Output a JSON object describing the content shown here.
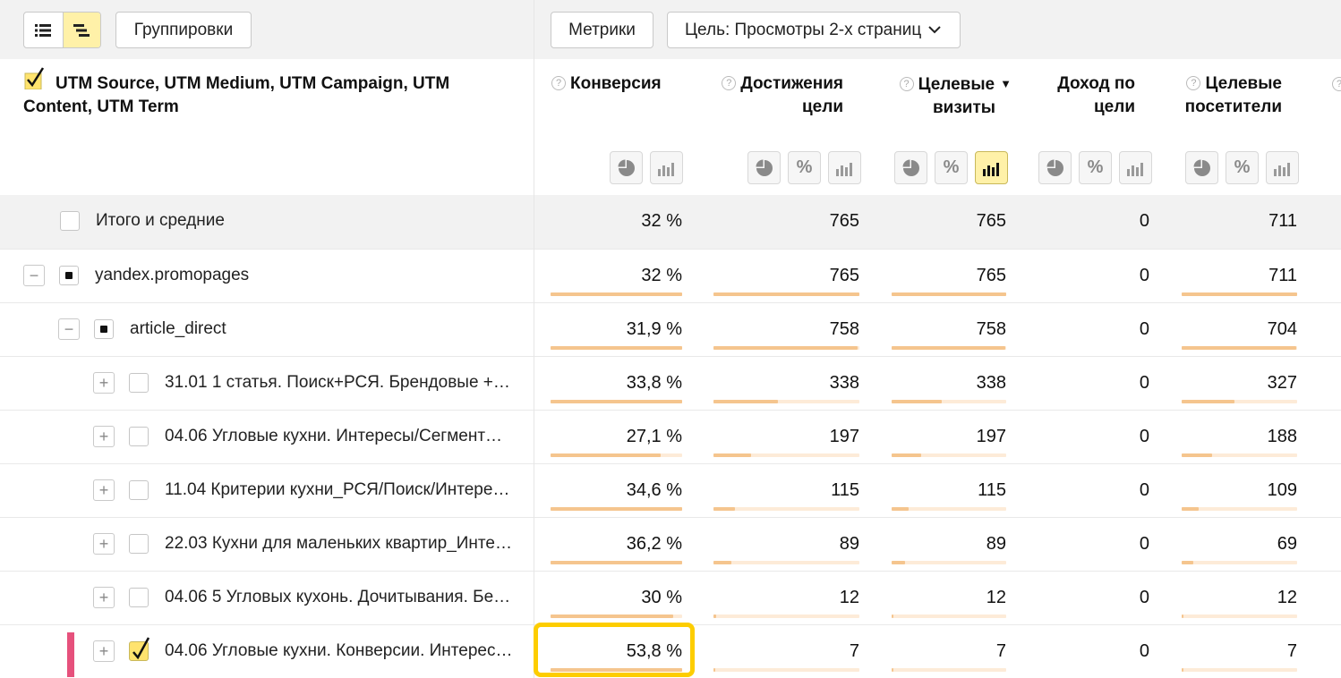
{
  "toolbar": {
    "groupings_label": "Группировки",
    "metrics_label": "Метрики",
    "goal_label": "Цель: Просмотры 2-х страниц"
  },
  "header": {
    "dimensions_title": "UTM Source, UTM Medium, UTM Campaign, UTM Content, UTM Term",
    "columns": [
      {
        "line1": "Конверсия",
        "line2": "",
        "sorted": false
      },
      {
        "line1": "Достижения",
        "line2": "цели",
        "sorted": false
      },
      {
        "line1": "Целевые",
        "line2": "визиты",
        "sorted": true
      },
      {
        "line1": "Доход по",
        "line2": "цели",
        "sorted": false
      },
      {
        "line1": "Целевые",
        "line2": "посетители",
        "sorted": false
      }
    ],
    "sort_arrow": "▼"
  },
  "rows": [
    {
      "label": "Итого и средние",
      "level": 0,
      "type": "total",
      "values": [
        "32 %",
        "765",
        "765",
        "0",
        "711"
      ],
      "bars": [
        null,
        null,
        null,
        null,
        null
      ]
    },
    {
      "label": "yandex.promopages",
      "level": 0,
      "type": "expanded",
      "values": [
        "32 %",
        "765",
        "765",
        "0",
        "711"
      ],
      "bars": [
        1,
        1,
        1,
        null,
        1
      ]
    },
    {
      "label": "article_direct",
      "level": 1,
      "type": "expanded",
      "values": [
        "31,9 %",
        "758",
        "758",
        "0",
        "704"
      ],
      "bars": [
        1,
        0.99,
        0.99,
        null,
        0.99
      ]
    },
    {
      "label": "31.01 1 статья. Поиск+РСЯ. Брендовые +…",
      "level": 2,
      "type": "collapsed",
      "values": [
        "33,8 %",
        "338",
        "338",
        "0",
        "327"
      ],
      "bars": [
        1,
        0.44,
        0.44,
        null,
        0.46
      ]
    },
    {
      "label": "04.06 Угловые кухни. Интересы/Сегмент…",
      "level": 2,
      "type": "collapsed",
      "values": [
        "27,1 %",
        "197",
        "197",
        "0",
        "188"
      ],
      "bars": [
        0.84,
        0.26,
        0.26,
        null,
        0.26
      ]
    },
    {
      "label": "11.04 Критерии кухни_РСЯ/Поиск/Интере…",
      "level": 2,
      "type": "collapsed",
      "values": [
        "34,6 %",
        "115",
        "115",
        "0",
        "109"
      ],
      "bars": [
        1,
        0.15,
        0.15,
        null,
        0.15
      ]
    },
    {
      "label": "22.03 Кухни для маленьких квартир_Инте…",
      "level": 2,
      "type": "collapsed",
      "values": [
        "36,2 %",
        "89",
        "89",
        "0",
        "69"
      ],
      "bars": [
        1,
        0.12,
        0.12,
        null,
        0.1
      ]
    },
    {
      "label": "04.06 5 Угловых кухонь. Дочитывания. Бе…",
      "level": 2,
      "type": "collapsed",
      "values": [
        "30 %",
        "12",
        "12",
        "0",
        "12"
      ],
      "bars": [
        0.93,
        0.016,
        0.016,
        null,
        0.017
      ]
    },
    {
      "label": "04.06 Угловые кухни. Конверсии. Интерес…",
      "level": 2,
      "type": "collapsed",
      "checked": true,
      "values": [
        "53,8 %",
        "7",
        "7",
        "0",
        "7"
      ],
      "bars": [
        1,
        0.009,
        0.009,
        null,
        0.01
      ]
    }
  ],
  "colors": {
    "accent_yellow": "#fff1a8",
    "highlight_border": "#fdcd00",
    "bar_fill": "#f5c58e",
    "bar_track": "#fdebd8",
    "row_marker": "#e6517c"
  }
}
